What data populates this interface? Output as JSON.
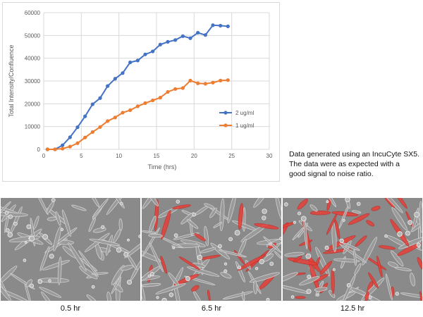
{
  "chart_data": {
    "type": "line",
    "title": "",
    "xlabel": "Time (hrs)",
    "ylabel": "Total Intensity/Confluence",
    "xlim": [
      0,
      30
    ],
    "ylim": [
      0,
      60000
    ],
    "x_ticks": [
      0,
      5,
      10,
      15,
      20,
      25,
      30
    ],
    "y_ticks": [
      0,
      10000,
      20000,
      30000,
      40000,
      50000,
      60000
    ],
    "y_tick_labels": [
      "0",
      "10000",
      "20000",
      "30000",
      "40000",
      "50000",
      "60000"
    ],
    "grid": true,
    "legend_position": "right",
    "series": [
      {
        "name": "2 ug/ml",
        "color": "#4472C4",
        "x": [
          0.5,
          1.5,
          2.5,
          3.5,
          4.5,
          5.5,
          6.5,
          7.5,
          8.5,
          9.5,
          10.5,
          11.5,
          12.5,
          13.5,
          14.5,
          15.5,
          16.5,
          17.5,
          18.5,
          19.5,
          20.5,
          21.5,
          22.5,
          23.5,
          24.5
        ],
        "y": [
          0,
          0,
          1800,
          5300,
          9700,
          14500,
          19800,
          22500,
          27800,
          31000,
          33500,
          38200,
          39000,
          41700,
          43000,
          46000,
          47200,
          48000,
          49700,
          48800,
          51200,
          50200,
          54500,
          54300,
          54000
        ]
      },
      {
        "name": "1 ug/ml",
        "color": "#ED7D31",
        "x": [
          0.5,
          1.5,
          2.5,
          3.5,
          4.5,
          5.5,
          6.5,
          7.5,
          8.5,
          9.5,
          10.5,
          11.5,
          12.5,
          13.5,
          14.5,
          15.5,
          16.5,
          17.5,
          18.5,
          19.5,
          20.5,
          21.5,
          22.5,
          23.5,
          24.5
        ],
        "y": [
          0,
          0,
          300,
          1200,
          2700,
          5200,
          7600,
          9800,
          12400,
          14000,
          16100,
          17200,
          18900,
          20300,
          21500,
          22700,
          25200,
          26500,
          26900,
          30200,
          29000,
          28800,
          29300,
          30200,
          30400
        ]
      }
    ]
  },
  "note": {
    "line1": "Data generated using an IncuCyte SX5.",
    "line2": "The data were as expected with a",
    "line3": "good signal to noise ratio."
  },
  "images": [
    {
      "caption": "0.5 hr"
    },
    {
      "caption": "6.5 hr"
    },
    {
      "caption": "12.5 hr"
    }
  ],
  "colors": {
    "cell_background": "#8a8a8a",
    "cell_outline": "#d8d8d8",
    "fluorescence": "#e8403a"
  }
}
